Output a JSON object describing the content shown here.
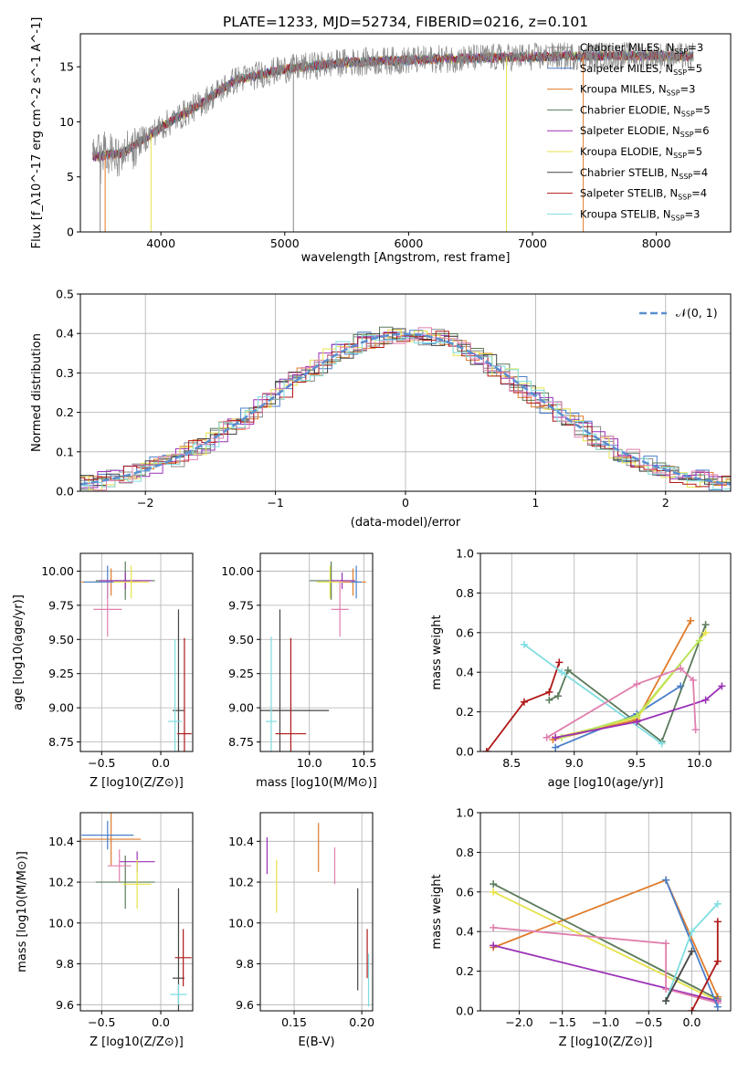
{
  "figure": {
    "title": "PLATE=1233, MJD=52734, FIBERID=0216, z=0.101"
  },
  "palette": {
    "Chabrier MILES": "#888888",
    "Salpeter MILES": "#4a7fc9",
    "Kroupa MILES": "#e07b2a",
    "Chabrier ELODIE": "#5a7a5a",
    "Salpeter ELODIE": "#9b30b8",
    "Kroupa ELODIE": "#e6e34a",
    "Chabrier STELIB": "#444444",
    "Salpeter STELIB": "#b01818",
    "Kroupa STELIB": "#7fdde0",
    "extra_pink": "#e07fae",
    "extra_lime": "#b7e35c",
    "normal_curve": "#5b8fd0"
  },
  "chart_data": [
    {
      "id": "spectrum",
      "type": "line",
      "title": "PLATE=1233, MJD=52734, FIBERID=0216, z=0.101",
      "xlabel": "wavelength [Angstrom, rest frame]",
      "ylabel": "Flux [f_λ10^-17 erg cm^-2 s^-1 A^-1]",
      "xlim": [
        3350,
        8600
      ],
      "ylim": [
        0,
        18
      ],
      "xticks": [
        "4000",
        "5000",
        "6000",
        "7000",
        "8000"
      ],
      "yticks": [
        "0",
        "5",
        "10",
        "15"
      ],
      "legend_position": "right",
      "series": [
        {
          "name": "Chabrier MILES, N_SSP=3"
        },
        {
          "name": "Salpeter MILES, N_SSP=5"
        },
        {
          "name": "Kroupa MILES, N_SSP=3"
        },
        {
          "name": "Chabrier ELODIE, N_SSP=5"
        },
        {
          "name": "Salpeter ELODIE, N_SSP=6"
        },
        {
          "name": "Kroupa ELODIE, N_SSP=5"
        },
        {
          "name": "Chabrier STELIB, N_SSP=4"
        },
        {
          "name": "Salpeter STELIB, N_SSP=4"
        },
        {
          "name": "Kroupa STELIB, N_SSP=3"
        }
      ],
      "continuum": {
        "x": [
          3450,
          3700,
          4000,
          4300,
          4600,
          5000,
          5500,
          6000,
          6500,
          7000,
          7500,
          8000,
          8300
        ],
        "y": [
          6.8,
          7.2,
          9.5,
          11.5,
          13.8,
          14.8,
          15.4,
          15.6,
          15.8,
          15.9,
          16.0,
          16.0,
          15.9
        ]
      }
    },
    {
      "id": "residual_hist",
      "type": "line",
      "xlabel": "(data-model)/error",
      "ylabel": "Normed distribution",
      "xlim": [
        -2.5,
        2.5
      ],
      "ylim": [
        0,
        0.5
      ],
      "xticks": [
        "−2",
        "−1",
        "0",
        "1",
        "2"
      ],
      "yticks": [
        "0.0",
        "0.1",
        "0.2",
        "0.3",
        "0.4",
        "0.5"
      ],
      "legend": [
        "𝒩(0, 1)"
      ],
      "legend_position": "top-right",
      "grid": true
    },
    {
      "id": "age_vs_Z",
      "type": "scatter",
      "xlabel": "Z [log10(Z/Z⊙)]",
      "ylabel": "age  [log10(age/yr)]",
      "xlim": [
        -0.68,
        0.27
      ],
      "ylim": [
        8.68,
        10.13
      ],
      "xticks": [
        "−0.5",
        "0.0"
      ],
      "yticks": [
        "8.75",
        "9.00",
        "9.25",
        "9.50",
        "9.75",
        "10.00"
      ],
      "points": [
        {
          "x": -0.42,
          "y": 9.92,
          "xe": 0.25,
          "ye": 0.1,
          "c": "#e07b2a"
        },
        {
          "x": -0.45,
          "y": 9.92,
          "xe": 0.2,
          "ye": 0.12,
          "c": "#4a7fc9"
        },
        {
          "x": -0.3,
          "y": 9.93,
          "xe": 0.25,
          "ye": 0.14,
          "c": "#5a7a5a"
        },
        {
          "x": -0.3,
          "y": 9.93,
          "xe": 0.22,
          "ye": 0.06,
          "c": "#9b30b8"
        },
        {
          "x": -0.25,
          "y": 9.92,
          "xe": 0.15,
          "ye": 0.12,
          "c": "#e6e34a"
        },
        {
          "x": -0.45,
          "y": 9.72,
          "xe": 0.12,
          "ye": 0.2,
          "c": "#e07fae"
        },
        {
          "x": 0.15,
          "y": 8.98,
          "xe": 0.05,
          "ye": 0.74,
          "c": "#444444"
        },
        {
          "x": 0.2,
          "y": 8.81,
          "xe": 0.06,
          "ye": 0.7,
          "c": "#b01818"
        },
        {
          "x": 0.12,
          "y": 8.9,
          "xe": 0.06,
          "ye": 0.6,
          "c": "#7fdde0"
        }
      ]
    },
    {
      "id": "age_vs_mass",
      "type": "scatter",
      "xlabel": "mass [log10(M/M⊙)]",
      "ylabel": "",
      "xlim": [
        9.55,
        10.58
      ],
      "ylim": [
        8.68,
        10.13
      ],
      "xticks": [
        "10.0",
        "10.5"
      ],
      "yticks": [
        "8.75",
        "9.00",
        "9.25",
        "9.50",
        "9.75",
        "10.00"
      ],
      "points": [
        {
          "x": 10.4,
          "y": 9.92,
          "xe": 0.12,
          "ye": 0.1,
          "c": "#e07b2a"
        },
        {
          "x": 10.43,
          "y": 9.92,
          "xe": 0.05,
          "ye": 0.12,
          "c": "#4a7fc9"
        },
        {
          "x": 10.2,
          "y": 9.93,
          "xe": 0.2,
          "ye": 0.14,
          "c": "#5a7a5a"
        },
        {
          "x": 10.3,
          "y": 9.93,
          "xe": 0.12,
          "ye": 0.06,
          "c": "#9b30b8"
        },
        {
          "x": 10.19,
          "y": 9.92,
          "xe": 0.12,
          "ye": 0.12,
          "c": "#e6e34a"
        },
        {
          "x": 10.28,
          "y": 9.72,
          "xe": 0.08,
          "ye": 0.2,
          "c": "#e07fae"
        },
        {
          "x": 9.73,
          "y": 8.98,
          "xe": 0.45,
          "ye": 0.74,
          "c": "#444444"
        },
        {
          "x": 9.83,
          "y": 8.81,
          "xe": 0.14,
          "ye": 0.7,
          "c": "#b01818"
        },
        {
          "x": 9.65,
          "y": 8.9,
          "xe": 0.05,
          "ye": 0.62,
          "c": "#7fdde0"
        }
      ]
    },
    {
      "id": "mass_weight_vs_age",
      "type": "line",
      "xlabel": "age  [log10(age/yr)]",
      "ylabel": "mass weight",
      "xlim": [
        8.25,
        10.25
      ],
      "ylim": [
        0,
        1
      ],
      "xticks": [
        "8.5",
        "9.0",
        "9.5",
        "10.0"
      ],
      "yticks": [
        "0.0",
        "0.2",
        "0.4",
        "0.6",
        "0.8",
        "1.0"
      ],
      "series": [
        {
          "c": "#b01818",
          "x": [
            8.3,
            8.6,
            8.8,
            8.88
          ],
          "y": [
            0.0,
            0.25,
            0.3,
            0.45
          ]
        },
        {
          "c": "#5a7a5a",
          "x": [
            8.8,
            8.87,
            8.95,
            9.7,
            10.05
          ],
          "y": [
            0.26,
            0.28,
            0.41,
            0.05,
            0.64
          ]
        },
        {
          "c": "#7fdde0",
          "x": [
            8.6,
            8.9,
            9.7
          ],
          "y": [
            0.54,
            0.4,
            0.04
          ]
        },
        {
          "c": "#4a7fc9",
          "x": [
            8.85,
            9.5,
            9.85
          ],
          "y": [
            0.02,
            0.19,
            0.33
          ]
        },
        {
          "c": "#e07b2a",
          "x": [
            8.83,
            9.5,
            9.93
          ],
          "y": [
            0.06,
            0.16,
            0.66
          ]
        },
        {
          "c": "#e6e34a",
          "x": [
            8.85,
            9.5,
            10.05
          ],
          "y": [
            0.07,
            0.17,
            0.6
          ]
        },
        {
          "c": "#b7e35c",
          "x": [
            8.9,
            9.5,
            10.0
          ],
          "y": [
            0.07,
            0.18,
            0.56
          ]
        },
        {
          "c": "#9b30b8",
          "x": [
            8.85,
            9.5,
            10.05,
            10.18
          ],
          "y": [
            0.07,
            0.15,
            0.26,
            0.33
          ]
        },
        {
          "c": "#e07fae",
          "x": [
            8.78,
            9.5,
            9.85,
            9.95,
            9.97
          ],
          "y": [
            0.07,
            0.34,
            0.42,
            0.36,
            0.11
          ]
        }
      ]
    },
    {
      "id": "mass_vs_Z",
      "type": "scatter",
      "xlabel": "Z [log10(Z/Z⊙)]",
      "ylabel": "mass [log10(M/M⊙)]",
      "xlim": [
        -0.68,
        0.27
      ],
      "ylim": [
        9.57,
        10.54
      ],
      "xticks": [
        "−0.5",
        "0.0"
      ],
      "yticks": [
        "9.6",
        "9.8",
        "10.0",
        "10.2",
        "10.4"
      ],
      "points": [
        {
          "x": -0.42,
          "y": 10.41,
          "xe": 0.25,
          "ye": 0.13,
          "c": "#e07b2a"
        },
        {
          "x": -0.45,
          "y": 10.43,
          "xe": 0.22,
          "ye": 0.07,
          "c": "#4a7fc9"
        },
        {
          "x": -0.3,
          "y": 10.2,
          "xe": 0.25,
          "ye": 0.13,
          "c": "#5a7a5a"
        },
        {
          "x": -0.2,
          "y": 10.3,
          "xe": 0.15,
          "ye": 0.05,
          "c": "#9b30b8"
        },
        {
          "x": -0.2,
          "y": 10.19,
          "xe": 0.12,
          "ye": 0.12,
          "c": "#e6e34a"
        },
        {
          "x": -0.35,
          "y": 10.28,
          "xe": 0.1,
          "ye": 0.08,
          "c": "#e07fae"
        },
        {
          "x": 0.15,
          "y": 9.73,
          "xe": 0.05,
          "ye": 0.44,
          "c": "#444444"
        },
        {
          "x": 0.19,
          "y": 9.83,
          "xe": 0.07,
          "ye": 0.14,
          "c": "#b01818"
        },
        {
          "x": 0.15,
          "y": 9.65,
          "xe": 0.07,
          "ye": 0.05,
          "c": "#7fdde0"
        }
      ]
    },
    {
      "id": "mass_vs_ebv",
      "type": "scatter",
      "xlabel": "E(B-V)",
      "ylabel": "",
      "xlim": [
        0.125,
        0.208
      ],
      "ylim": [
        9.57,
        10.54
      ],
      "xticks": [
        "0.15",
        "0.20"
      ],
      "yticks": [
        "9.6",
        "9.8",
        "10.0",
        "10.2",
        "10.4"
      ],
      "points": [
        {
          "x": 0.168,
          "y": 10.37,
          "xe": 0,
          "ye": 0.12,
          "c": "#e07b2a"
        },
        {
          "x": 0.13,
          "y": 10.33,
          "xe": 0,
          "ye": 0.09,
          "c": "#9b30b8"
        },
        {
          "x": 0.137,
          "y": 10.18,
          "xe": 0,
          "ye": 0.13,
          "c": "#e6e34a"
        },
        {
          "x": 0.18,
          "y": 10.28,
          "xe": 0,
          "ye": 0.09,
          "c": "#e07fae"
        },
        {
          "x": 0.197,
          "y": 9.92,
          "xe": 0,
          "ye": 0.25,
          "c": "#444444"
        },
        {
          "x": 0.204,
          "y": 9.85,
          "xe": 0,
          "ye": 0.12,
          "c": "#b01818"
        },
        {
          "x": 0.205,
          "y": 9.72,
          "xe": 0,
          "ye": 0.13,
          "c": "#7fdde0"
        }
      ]
    },
    {
      "id": "mass_weight_vs_Z",
      "type": "line",
      "xlabel": "Z [log10(Z/Z⊙)]",
      "ylabel": "mass weight",
      "xlim": [
        -2.45,
        0.45
      ],
      "ylim": [
        0,
        1
      ],
      "xticks": [
        "−2.0",
        "−1.5",
        "−1.0",
        "−0.5",
        "0.0"
      ],
      "yticks": [
        "0.0",
        "0.2",
        "0.4",
        "0.6",
        "0.8",
        "1.0"
      ],
      "series": [
        {
          "c": "#e07b2a",
          "x": [
            -2.3,
            -0.3,
            0.3
          ],
          "y": [
            0.32,
            0.66,
            0.07
          ]
        },
        {
          "c": "#5a7a5a",
          "x": [
            -2.3,
            0.3
          ],
          "y": [
            0.64,
            0.06
          ]
        },
        {
          "c": "#e6e34a",
          "x": [
            -2.3,
            0.3
          ],
          "y": [
            0.6,
            0.05
          ]
        },
        {
          "c": "#9b30b8",
          "x": [
            -2.3,
            0.3
          ],
          "y": [
            0.33,
            0.05
          ]
        },
        {
          "c": "#e07fae",
          "x": [
            -2.3,
            -0.3,
            -0.3,
            0.3
          ],
          "y": [
            0.42,
            0.34,
            0.11,
            0.04
          ]
        },
        {
          "c": "#4a7fc9",
          "x": [
            -0.3,
            0.3
          ],
          "y": [
            0.66,
            0.02
          ]
        },
        {
          "c": "#7fdde0",
          "x": [
            -0.3,
            0.0,
            0.3
          ],
          "y": [
            0.05,
            0.4,
            0.54
          ]
        },
        {
          "c": "#444444",
          "x": [
            -0.3,
            0.0
          ],
          "y": [
            0.05,
            0.3
          ]
        },
        {
          "c": "#b01818",
          "x": [
            0.0,
            0.3,
            0.3
          ],
          "y": [
            0.0,
            0.25,
            0.45
          ]
        }
      ]
    }
  ]
}
